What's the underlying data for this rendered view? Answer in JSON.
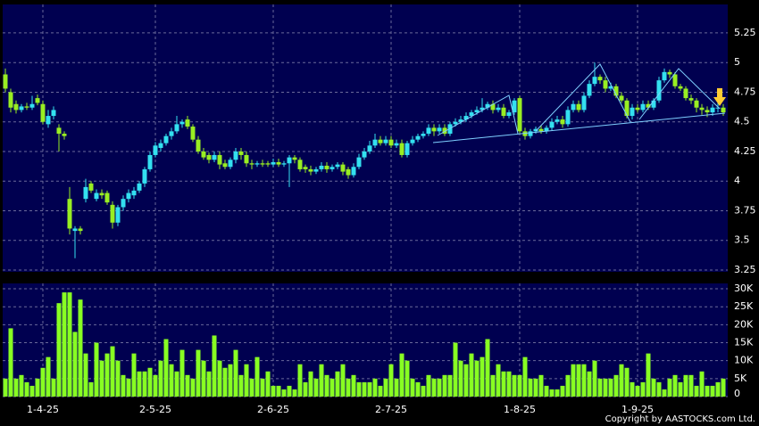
{
  "chart_data": {
    "type": "candlestick",
    "categories": [
      null,
      null,
      null,
      null,
      null,
      null,
      null,
      "1-4-25",
      null,
      null,
      null,
      null,
      null,
      null,
      null,
      null,
      null,
      null,
      null,
      null,
      null,
      null,
      null,
      null,
      null,
      null,
      null,
      null,
      "2-5-25",
      null,
      null,
      null,
      null,
      null,
      null,
      null,
      null,
      null,
      null,
      null,
      null,
      null,
      null,
      null,
      null,
      null,
      null,
      null,
      null,
      null,
      "2-6-25",
      null,
      null,
      null,
      null,
      null,
      null,
      null,
      null,
      null,
      null,
      null,
      null,
      null,
      null,
      null,
      null,
      null,
      null,
      null,
      null,
      null,
      "2-7-25",
      null,
      null,
      null,
      null,
      null,
      null,
      null,
      null,
      null,
      null,
      null,
      null,
      null,
      null,
      null,
      null,
      null,
      null,
      null,
      null,
      null,
      null,
      null,
      "1-8-25",
      null,
      null,
      null,
      null,
      null,
      null,
      null,
      null,
      null,
      null,
      null,
      null,
      null,
      null,
      null,
      null,
      null,
      null,
      null,
      null,
      null,
      "1-9-25",
      null,
      null,
      null,
      null,
      null,
      null,
      null,
      null,
      null,
      null,
      null,
      null,
      null,
      null,
      null,
      null
    ],
    "open": [
      4.9,
      4.75,
      4.65,
      4.6,
      4.63,
      4.62,
      4.7,
      4.65,
      4.48,
      4.55,
      4.45,
      4.4,
      3.85,
      3.58,
      3.6,
      3.85,
      3.98,
      3.85,
      3.9,
      3.9,
      3.8,
      3.65,
      3.78,
      3.85,
      3.88,
      3.92,
      3.98,
      4.1,
      4.22,
      4.28,
      4.32,
      4.38,
      4.42,
      4.48,
      4.52,
      4.46,
      4.35,
      4.25,
      4.22,
      4.18,
      4.22,
      4.15,
      4.12,
      4.18,
      4.25,
      4.22,
      4.15,
      4.14,
      4.15,
      4.15,
      4.14,
      4.16,
      4.14,
      4.15,
      4.2,
      4.18,
      4.12,
      4.1,
      4.08,
      4.1,
      4.13,
      4.1,
      4.12,
      4.14,
      4.1,
      4.05,
      4.12,
      4.2,
      4.25,
      4.3,
      4.35,
      4.32,
      4.35,
      4.3,
      4.32,
      4.22,
      4.32,
      4.35,
      4.38,
      4.4,
      4.45,
      4.42,
      4.45,
      4.4,
      4.48,
      4.5,
      4.52,
      4.55,
      4.58,
      4.6,
      4.62,
      4.65,
      4.6,
      4.62,
      4.55,
      4.58,
      4.7,
      4.42,
      4.38,
      4.42,
      4.44,
      4.42,
      4.45,
      4.5,
      4.52,
      4.48,
      4.6,
      4.65,
      4.6,
      4.72,
      4.82,
      4.88,
      4.85,
      4.78,
      4.8,
      4.72,
      4.68,
      4.55,
      4.62,
      4.6,
      4.65,
      4.62,
      4.68,
      4.85,
      4.92,
      4.9,
      4.8,
      4.78,
      4.7,
      4.68,
      4.62,
      4.6,
      4.58,
      4.62,
      4.62
    ],
    "high": [
      4.95,
      4.78,
      4.68,
      4.65,
      4.66,
      4.72,
      4.73,
      4.68,
      4.6,
      4.63,
      4.48,
      4.42,
      3.95,
      3.62,
      3.62,
      4.02,
      4.0,
      3.93,
      3.93,
      3.92,
      3.83,
      3.8,
      3.88,
      3.93,
      3.95,
      4.0,
      4.12,
      4.25,
      4.33,
      4.35,
      4.4,
      4.45,
      4.55,
      4.52,
      4.55,
      4.48,
      4.38,
      4.28,
      4.24,
      4.25,
      4.25,
      4.18,
      4.2,
      4.28,
      4.28,
      4.25,
      4.18,
      4.17,
      4.18,
      4.17,
      4.19,
      4.19,
      4.17,
      4.22,
      4.22,
      4.2,
      4.14,
      4.13,
      4.12,
      4.16,
      4.16,
      4.14,
      4.16,
      4.16,
      4.12,
      4.15,
      4.23,
      4.28,
      4.34,
      4.4,
      4.38,
      4.38,
      4.38,
      4.35,
      4.35,
      4.34,
      4.38,
      4.4,
      4.42,
      4.48,
      4.48,
      4.48,
      4.48,
      4.5,
      4.53,
      4.55,
      4.58,
      4.6,
      4.63,
      4.7,
      4.67,
      4.68,
      4.65,
      4.65,
      4.6,
      4.7,
      4.72,
      4.45,
      4.44,
      4.46,
      4.47,
      4.47,
      4.53,
      4.55,
      4.55,
      4.63,
      4.68,
      4.68,
      4.75,
      4.85,
      5.0,
      4.9,
      4.88,
      4.83,
      4.82,
      4.75,
      4.7,
      4.65,
      4.65,
      4.68,
      4.68,
      4.7,
      4.88,
      4.95,
      4.94,
      4.92,
      4.82,
      4.8,
      4.73,
      4.7,
      4.65,
      4.63,
      4.65,
      4.66,
      4.65
    ],
    "low": [
      4.75,
      4.58,
      4.57,
      4.58,
      4.6,
      4.6,
      4.64,
      4.48,
      4.45,
      4.52,
      4.25,
      4.35,
      3.55,
      3.35,
      3.55,
      3.82,
      3.9,
      3.83,
      3.85,
      3.8,
      3.6,
      3.62,
      3.75,
      3.82,
      3.85,
      3.9,
      3.95,
      4.08,
      4.2,
      4.25,
      4.3,
      4.35,
      4.4,
      4.45,
      4.44,
      4.33,
      4.23,
      4.18,
      4.15,
      4.16,
      4.1,
      4.1,
      4.1,
      4.15,
      4.18,
      4.12,
      4.1,
      4.12,
      4.12,
      4.12,
      4.12,
      4.12,
      4.12,
      3.95,
      4.15,
      4.08,
      4.07,
      4.05,
      4.06,
      4.08,
      4.07,
      4.08,
      4.1,
      4.05,
      4.02,
      4.03,
      4.1,
      4.18,
      4.23,
      4.28,
      4.3,
      4.3,
      4.28,
      4.28,
      4.2,
      4.2,
      4.3,
      4.33,
      4.36,
      4.38,
      4.38,
      4.4,
      4.38,
      4.38,
      4.46,
      4.48,
      4.5,
      4.53,
      4.56,
      4.58,
      4.6,
      4.57,
      4.58,
      4.53,
      4.53,
      4.56,
      4.4,
      4.35,
      4.36,
      4.4,
      4.4,
      4.4,
      4.43,
      4.48,
      4.45,
      4.46,
      4.58,
      4.58,
      4.58,
      4.7,
      4.8,
      4.82,
      4.75,
      4.76,
      4.7,
      4.66,
      4.53,
      4.52,
      4.58,
      4.58,
      4.6,
      4.6,
      4.66,
      4.83,
      4.87,
      4.78,
      4.76,
      4.68,
      4.65,
      4.58,
      4.56,
      4.54,
      4.55,
      4.58,
      4.55
    ],
    "close": [
      4.78,
      4.62,
      4.6,
      4.63,
      4.62,
      4.65,
      4.66,
      4.5,
      4.55,
      4.6,
      4.4,
      4.38,
      3.6,
      3.6,
      3.58,
      3.95,
      3.92,
      3.9,
      3.88,
      3.82,
      3.65,
      3.78,
      3.85,
      3.9,
      3.92,
      3.98,
      4.1,
      4.22,
      4.3,
      4.32,
      4.38,
      4.42,
      4.48,
      4.5,
      4.46,
      4.35,
      4.25,
      4.2,
      4.18,
      4.22,
      4.14,
      4.12,
      4.18,
      4.25,
      4.22,
      4.15,
      4.14,
      4.15,
      4.14,
      4.14,
      4.16,
      4.14,
      4.15,
      4.2,
      4.18,
      4.1,
      4.1,
      4.08,
      4.1,
      4.13,
      4.1,
      4.12,
      4.14,
      4.08,
      4.05,
      4.12,
      4.2,
      4.25,
      4.3,
      4.35,
      4.32,
      4.35,
      4.3,
      4.32,
      4.22,
      4.32,
      4.35,
      4.38,
      4.4,
      4.45,
      4.42,
      4.45,
      4.4,
      4.48,
      4.5,
      4.52,
      4.55,
      4.58,
      4.6,
      4.62,
      4.65,
      4.6,
      4.62,
      4.55,
      4.58,
      4.68,
      4.42,
      4.38,
      4.42,
      4.44,
      4.42,
      4.45,
      4.5,
      4.52,
      4.48,
      4.6,
      4.65,
      4.6,
      4.72,
      4.82,
      4.88,
      4.85,
      4.78,
      4.8,
      4.72,
      4.68,
      4.55,
      4.62,
      4.6,
      4.65,
      4.62,
      4.68,
      4.85,
      4.92,
      4.9,
      4.8,
      4.78,
      4.7,
      4.68,
      4.62,
      4.6,
      4.58,
      4.62,
      4.62,
      4.58
    ],
    "volume": [
      5000,
      19000,
      5000,
      6000,
      4000,
      3000,
      5000,
      8000,
      11000,
      5000,
      26000,
      29000,
      29000,
      18000,
      27000,
      12000,
      4000,
      15000,
      10000,
      12000,
      14000,
      10000,
      6000,
      5000,
      12000,
      7000,
      7000,
      8000,
      6000,
      10000,
      16000,
      9000,
      7000,
      13000,
      6000,
      5000,
      13000,
      10000,
      7000,
      17000,
      10000,
      8000,
      9000,
      13000,
      6000,
      9000,
      5000,
      11000,
      5000,
      7000,
      3000,
      3000,
      2000,
      3000,
      2000,
      9000,
      4000,
      7000,
      5000,
      9000,
      6000,
      5000,
      7000,
      9000,
      5000,
      6000,
      4000,
      4000,
      4000,
      5000,
      3000,
      5000,
      9000,
      5000,
      12000,
      10000,
      5000,
      4000,
      3000,
      6000,
      5000,
      5000,
      6000,
      6000,
      15000,
      10000,
      9000,
      12000,
      10000,
      11000,
      16000,
      6000,
      9000,
      7000,
      7000,
      6000,
      6000,
      11000,
      5000,
      5000,
      6000,
      3000,
      2000,
      2000,
      3000,
      6000,
      9000,
      9000,
      9000,
      7000,
      10000,
      5000,
      5000,
      5000,
      6000,
      9000,
      8000,
      4000,
      3000,
      4000,
      12000,
      5000,
      4000,
      2000,
      5000,
      6000,
      4000,
      6000,
      6000,
      3000,
      7000,
      3000,
      3000,
      4000,
      5000
    ],
    "up_color": "#33e0f0",
    "down_color": "#99ee22",
    "volume_color": "#88ff22",
    "ylim": [
      3.235,
      5.49
    ],
    "yticks": [
      3.25,
      3.5,
      3.75,
      4,
      4.25,
      4.5,
      4.75,
      5,
      5.25
    ],
    "volume_ylim": [
      0,
      31500
    ],
    "volume_yticks": [
      0,
      {
        "value": 5000,
        "label": "5K"
      },
      {
        "value": 10000,
        "label": "10K"
      },
      {
        "value": 15000,
        "label": "15K"
      },
      {
        "value": 20000,
        "label": "20K"
      },
      {
        "value": 25000,
        "label": "25K"
      },
      {
        "value": 30000,
        "label": "30K"
      }
    ],
    "grid": true,
    "copyright": "Copyright by AASTOCKS.com Ltd."
  }
}
